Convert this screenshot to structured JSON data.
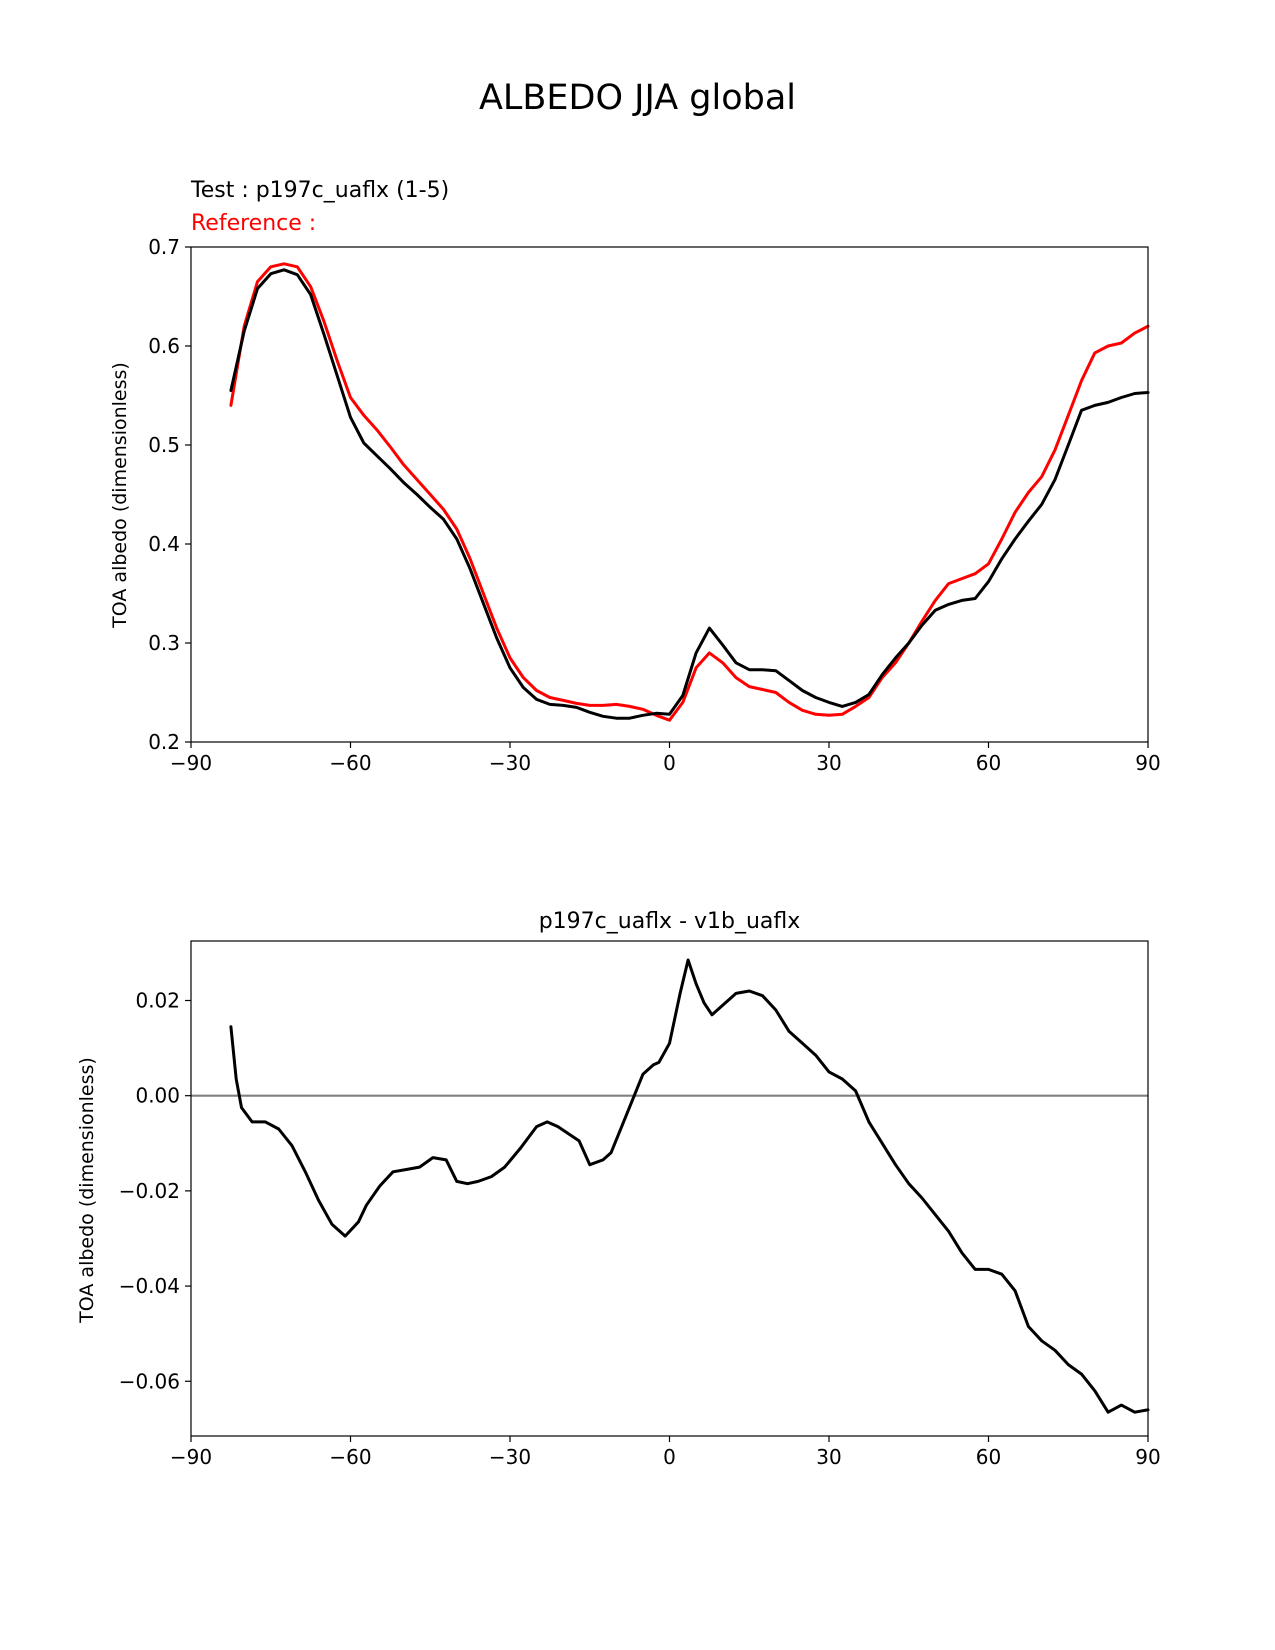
{
  "figure": {
    "title": "ALBEDO JJA global"
  },
  "chart_data": [
    {
      "type": "line",
      "test_label": "Test : p197c_uaflx (1-5)",
      "reference_label": "Reference :",
      "xlabel": "",
      "ylabel": "TOA albedo (dimensionless)",
      "xlim": [
        -90,
        90
      ],
      "ylim": [
        0.2,
        0.7
      ],
      "xticks": [
        -90,
        -60,
        -30,
        0,
        30,
        60,
        90
      ],
      "xtick_labels": [
        "−90",
        "−60",
        "−30",
        "0",
        "30",
        "60",
        "90"
      ],
      "yticks": [
        0.2,
        0.3,
        0.4,
        0.5,
        0.6,
        0.7
      ],
      "ytick_labels": [
        "0.2",
        "0.3",
        "0.4",
        "0.5",
        "0.6",
        "0.7"
      ],
      "grid": false,
      "series": [
        {
          "color": "#ff0000",
          "x": [
            -82.5,
            -80,
            -77.5,
            -75,
            -72.5,
            -70,
            -67.5,
            -65,
            -62.5,
            -60,
            -57.5,
            -55,
            -52.5,
            -50,
            -47.5,
            -45,
            -42.5,
            -40,
            -37.5,
            -35,
            -32.5,
            -30,
            -27.5,
            -25,
            -22.5,
            -20,
            -17.5,
            -15,
            -12.5,
            -10,
            -7.5,
            -5,
            -2.5,
            0,
            2.5,
            5,
            7.5,
            10,
            12.5,
            15,
            17.5,
            20,
            22.5,
            25,
            27.5,
            30,
            32.5,
            35,
            37.5,
            40,
            42.5,
            45,
            47.5,
            50,
            52.5,
            55,
            57.5,
            60,
            62.5,
            65,
            67.5,
            70,
            72.5,
            75,
            77.5,
            80,
            82.5,
            85,
            87.5,
            90
          ],
          "y": [
            0.54,
            0.62,
            0.665,
            0.68,
            0.683,
            0.68,
            0.66,
            0.625,
            0.585,
            0.548,
            0.53,
            0.515,
            0.498,
            0.48,
            0.465,
            0.45,
            0.435,
            0.415,
            0.385,
            0.35,
            0.315,
            0.285,
            0.265,
            0.252,
            0.245,
            0.242,
            0.239,
            0.237,
            0.237,
            0.238,
            0.236,
            0.233,
            0.227,
            0.222,
            0.24,
            0.275,
            0.29,
            0.28,
            0.265,
            0.256,
            0.253,
            0.25,
            0.24,
            0.232,
            0.228,
            0.227,
            0.228,
            0.236,
            0.245,
            0.265,
            0.28,
            0.3,
            0.322,
            0.343,
            0.36,
            0.365,
            0.37,
            0.38,
            0.405,
            0.432,
            0.452,
            0.468,
            0.495,
            0.53,
            0.565,
            0.593,
            0.6,
            0.603,
            0.613,
            0.62
          ]
        },
        {
          "color": "#000000",
          "x": [
            -82.5,
            -80,
            -77.5,
            -75,
            -72.5,
            -70,
            -67.5,
            -65,
            -62.5,
            -60,
            -57.5,
            -55,
            -52.5,
            -50,
            -47.5,
            -45,
            -42.5,
            -40,
            -37.5,
            -35,
            -32.5,
            -30,
            -27.5,
            -25,
            -22.5,
            -20,
            -17.5,
            -15,
            -12.5,
            -10,
            -7.5,
            -5,
            -2.5,
            0,
            2.5,
            5,
            7.5,
            10,
            12.5,
            15,
            17.5,
            20,
            22.5,
            25,
            27.5,
            30,
            32.5,
            35,
            37.5,
            40,
            42.5,
            45,
            47.5,
            50,
            52.5,
            55,
            57.5,
            60,
            62.5,
            65,
            67.5,
            70,
            72.5,
            75,
            77.5,
            80,
            82.5,
            85,
            87.5,
            90
          ],
          "y": [
            0.555,
            0.615,
            0.658,
            0.673,
            0.677,
            0.672,
            0.652,
            0.612,
            0.57,
            0.528,
            0.502,
            0.489,
            0.476,
            0.462,
            0.45,
            0.437,
            0.425,
            0.405,
            0.375,
            0.34,
            0.305,
            0.275,
            0.255,
            0.243,
            0.238,
            0.237,
            0.235,
            0.23,
            0.226,
            0.224,
            0.224,
            0.227,
            0.229,
            0.228,
            0.247,
            0.29,
            0.315,
            0.298,
            0.28,
            0.273,
            0.273,
            0.272,
            0.262,
            0.252,
            0.245,
            0.24,
            0.236,
            0.24,
            0.248,
            0.268,
            0.285,
            0.3,
            0.318,
            0.333,
            0.339,
            0.343,
            0.345,
            0.362,
            0.385,
            0.405,
            0.423,
            0.44,
            0.465,
            0.5,
            0.535,
            0.54,
            0.543,
            0.548,
            0.552,
            0.553
          ]
        }
      ]
    },
    {
      "type": "line",
      "title": "p197c_uaflx - v1b_uaflx",
      "xlabel": "",
      "ylabel": "TOA albedo (dimensionless)",
      "xlim": [
        -90,
        90
      ],
      "ylim": [
        -0.0715,
        0.0325
      ],
      "xticks": [
        -90,
        -60,
        -30,
        0,
        30,
        60,
        90
      ],
      "xtick_labels": [
        "−90",
        "−60",
        "−30",
        "0",
        "30",
        "60",
        "90"
      ],
      "yticks": [
        0.02,
        0.0,
        -0.02,
        -0.04,
        -0.06
      ],
      "ytick_labels": [
        "0.02",
        "0.00",
        "−0.02",
        "−0.04",
        "−0.06"
      ],
      "zero_line": {
        "y": 0.0,
        "color": "#808080"
      },
      "grid": false,
      "series": [
        {
          "color": "#000000",
          "x": [
            -82.5,
            -81.5,
            -80.5,
            -78.5,
            -76,
            -73.5,
            -71,
            -68.5,
            -66,
            -63.5,
            -61,
            -58.5,
            -57,
            -54.5,
            -52,
            -49.5,
            -47,
            -44.5,
            -42,
            -40,
            -38,
            -36,
            -33.5,
            -31,
            -28,
            -25,
            -23,
            -21,
            -19,
            -17,
            -15,
            -12.5,
            -11,
            -9,
            -7,
            -5,
            -3,
            -2,
            0,
            2,
            3.5,
            5,
            6.5,
            8,
            10,
            12.5,
            15,
            17.5,
            20,
            22.5,
            25,
            27.5,
            30,
            32.5,
            35,
            37.5,
            40,
            42.5,
            45,
            47.5,
            50,
            52.5,
            55,
            57.5,
            60,
            62.5,
            65,
            67.5,
            70,
            72.5,
            75,
            77.5,
            80,
            82.5,
            85,
            87.5,
            90
          ],
          "y": [
            0.0145,
            0.0035,
            -0.0025,
            -0.0055,
            -0.0055,
            -0.007,
            -0.0105,
            -0.016,
            -0.022,
            -0.027,
            -0.0295,
            -0.0265,
            -0.023,
            -0.019,
            -0.016,
            -0.0155,
            -0.015,
            -0.013,
            -0.0135,
            -0.018,
            -0.0185,
            -0.018,
            -0.017,
            -0.015,
            -0.011,
            -0.0065,
            -0.0055,
            -0.0065,
            -0.008,
            -0.0095,
            -0.0145,
            -0.0135,
            -0.012,
            -0.0065,
            -0.001,
            0.0045,
            0.0065,
            0.007,
            0.011,
            0.0215,
            0.0285,
            0.0235,
            0.0195,
            0.017,
            0.019,
            0.0215,
            0.022,
            0.021,
            0.018,
            0.0135,
            0.011,
            0.0085,
            0.005,
            0.0035,
            0.001,
            -0.0055,
            -0.01,
            -0.0145,
            -0.0185,
            -0.0215,
            -0.025,
            -0.0285,
            -0.033,
            -0.0365,
            -0.0365,
            -0.0375,
            -0.041,
            -0.0485,
            -0.0515,
            -0.0535,
            -0.0565,
            -0.0585,
            -0.062,
            -0.0665,
            -0.065,
            -0.0665,
            -0.066
          ]
        }
      ]
    }
  ]
}
